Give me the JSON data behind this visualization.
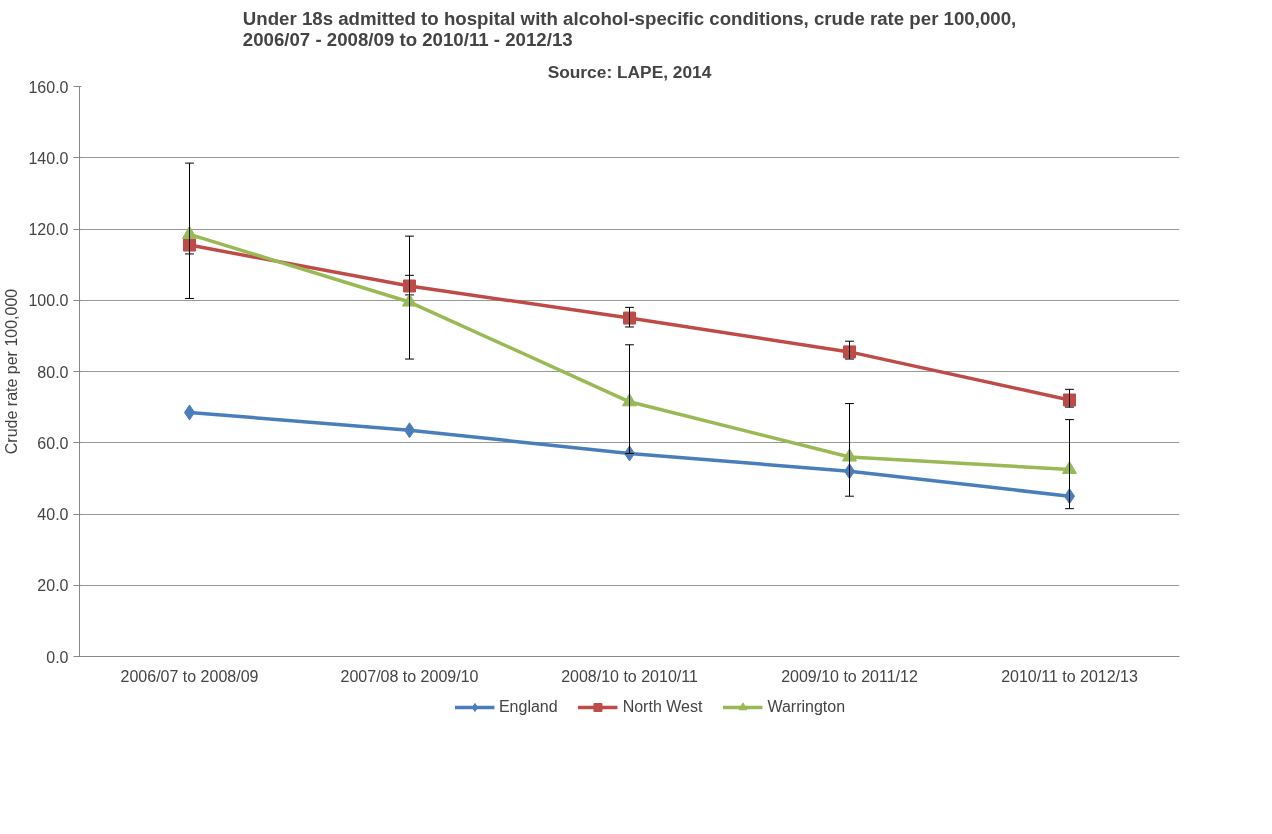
{
  "chart_data": {
    "type": "line",
    "title": "Under 18s admitted to hospital with alcohol-specific conditions, crude rate per 100,000,\n2006/07 - 2008/09 to 2010/11 - 2012/13",
    "subtitle": "Source: LAPE, 2014",
    "ylabel": "Crude rate per 100,000",
    "categories": [
      "2006/07 to 2008/09",
      "2007/08 to 2009/10",
      "2008/10 to 2010/11",
      "2009/10 to 2011/12",
      "2010/11 to 2012/13"
    ],
    "series": [
      {
        "name": "England",
        "color": "#4a7ebb",
        "marker": "diamond",
        "values": [
          68.5,
          63.5,
          57,
          52,
          45
        ]
      },
      {
        "name": "North West",
        "color": "#be4b48",
        "marker": "square",
        "values": [
          115.5,
          104,
          95,
          85.5,
          72
        ],
        "errors": [
          [
            113,
            118.5
          ],
          [
            101.5,
            107
          ],
          [
            92.5,
            98
          ],
          [
            83.5,
            88.5
          ],
          [
            70,
            75
          ]
        ]
      },
      {
        "name": "Warrington",
        "color": "#98b954",
        "marker": "triangle",
        "values": [
          118.5,
          99.5,
          71.5,
          56,
          52.5
        ],
        "errors": [
          [
            100.5,
            138.5
          ],
          [
            83.5,
            118
          ],
          [
            57,
            87.5
          ],
          [
            45,
            71
          ],
          [
            41.5,
            66.5
          ]
        ]
      }
    ],
    "ylim": [
      0,
      160
    ],
    "yticks": [
      {
        "value": 0,
        "label": "0.0"
      },
      {
        "value": 20,
        "label": "20.0"
      },
      {
        "value": 40,
        "label": "40.0"
      },
      {
        "value": 60,
        "label": "60.0"
      },
      {
        "value": 80,
        "label": "80.0"
      },
      {
        "value": 100,
        "label": "100.0"
      },
      {
        "value": 120,
        "label": "120.0"
      },
      {
        "value": 140,
        "label": "140.0"
      },
      {
        "value": 160,
        "label": "160.0"
      }
    ],
    "grid": "y",
    "legend": "bottom",
    "line_style": "solid"
  }
}
